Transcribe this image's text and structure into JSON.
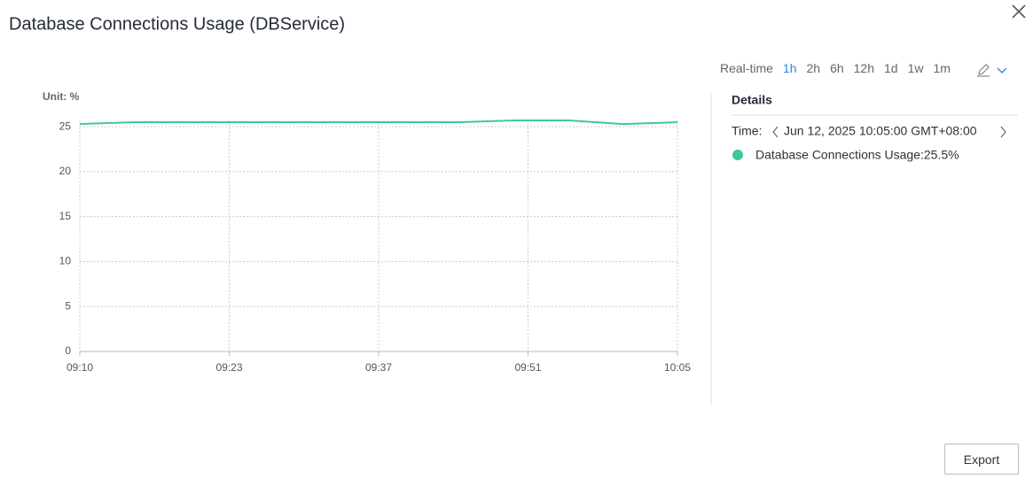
{
  "header": {
    "title": "Database Connections Usage (DBService)"
  },
  "time_ranges": [
    "Real-time",
    "1h",
    "2h",
    "6h",
    "12h",
    "1d",
    "1w",
    "1m"
  ],
  "selected_range": 1,
  "chart_data": {
    "type": "line",
    "ylabel": "Unit: %",
    "x": [
      "09:10",
      "09:15",
      "09:20",
      "09:25",
      "09:30",
      "09:35",
      "09:40",
      "09:45",
      "09:50",
      "09:55",
      "10:00",
      "10:05"
    ],
    "series": [
      {
        "name": "Database Connections Usage",
        "color": "#3ec6a0",
        "values": [
          25.3,
          25.5,
          25.5,
          25.5,
          25.5,
          25.5,
          25.5,
          25.5,
          25.7,
          25.7,
          25.3,
          25.5
        ]
      }
    ],
    "xlim": [
      "09:10",
      "10:05"
    ],
    "xticks": [
      {
        "value": "09:10",
        "label": "09:10"
      },
      {
        "value": "09:23:45",
        "label": "09:23"
      },
      {
        "value": "09:37:30",
        "label": "09:37"
      },
      {
        "value": "09:51:15",
        "label": "09:51"
      },
      {
        "value": "10:05",
        "label": "10:05"
      }
    ],
    "ylim": [
      0,
      25.7
    ],
    "yticks": [
      0,
      5,
      10,
      15,
      20,
      25
    ],
    "grid": true
  },
  "details": {
    "title": "Details",
    "time_label": "Time:",
    "time": "Jun 12, 2025 10:05:00 GMT+08:00",
    "entry": "Database Connections Usage:25.5%"
  },
  "export": "Export"
}
